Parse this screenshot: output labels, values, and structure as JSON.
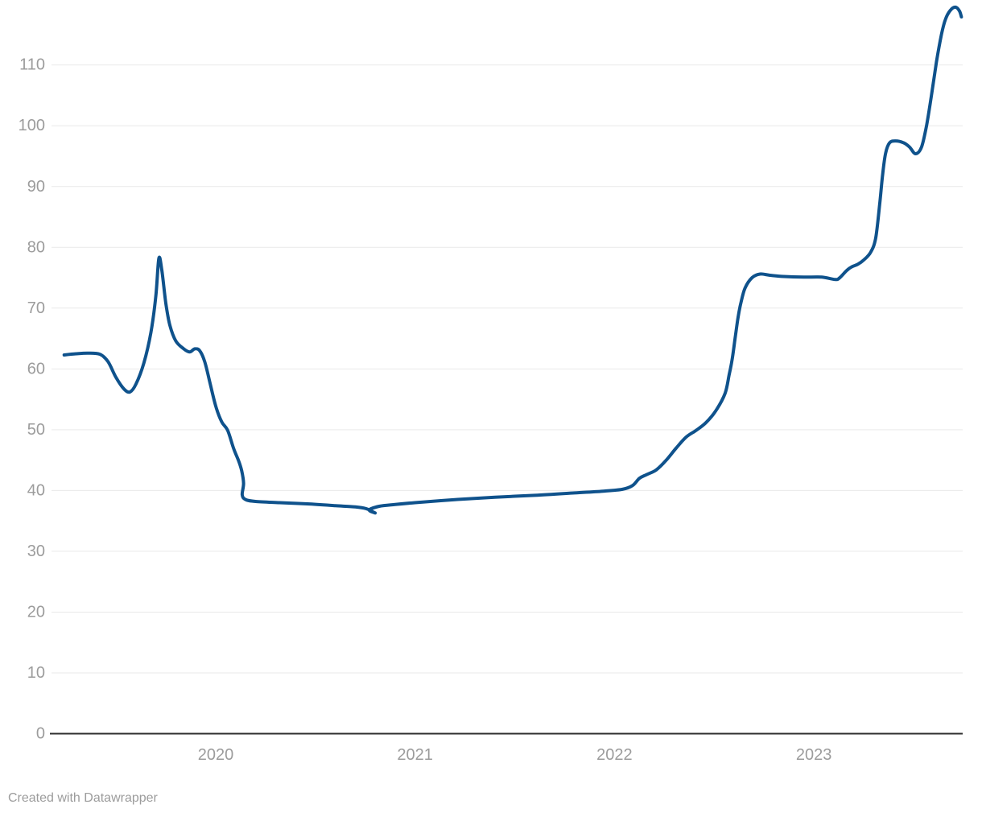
{
  "footer": {
    "attribution": "Created with Datawrapper"
  },
  "style": {
    "background": "#ffffff",
    "line_color": "#0f528c",
    "grid_color": "#e9e9e9",
    "axis_color": "#2e2e2e",
    "tick_label_color": "#9c9c9c"
  },
  "chart_data": {
    "type": "line",
    "title": "",
    "xlabel": "",
    "ylabel": "",
    "legend": "none",
    "grid": "horizontal",
    "x_axis": {
      "unit": "year",
      "range": [
        2019.24,
        2023.74
      ],
      "ticks": [
        {
          "value": 2020,
          "label": "2020"
        },
        {
          "value": 2021,
          "label": "2021"
        },
        {
          "value": 2022,
          "label": "2022"
        },
        {
          "value": 2023,
          "label": "2023"
        }
      ]
    },
    "y_axis": {
      "range": [
        0,
        110
      ],
      "ticks": [
        {
          "value": 0,
          "label": "0"
        },
        {
          "value": 10,
          "label": "10"
        },
        {
          "value": 20,
          "label": "20"
        },
        {
          "value": 30,
          "label": "30"
        },
        {
          "value": 40,
          "label": "40"
        },
        {
          "value": 50,
          "label": "50"
        },
        {
          "value": 60,
          "label": "60"
        },
        {
          "value": 70,
          "label": "70"
        },
        {
          "value": 80,
          "label": "80"
        },
        {
          "value": 90,
          "label": "90"
        },
        {
          "value": 100,
          "label": "100"
        },
        {
          "value": 110,
          "label": "110"
        }
      ]
    },
    "series": [
      {
        "name": "value",
        "color": "#0f528c",
        "points": [
          [
            2019.24,
            62.3
          ],
          [
            2019.3,
            62.5
          ],
          [
            2019.36,
            62.6
          ],
          [
            2019.42,
            62.4
          ],
          [
            2019.46,
            61.2
          ],
          [
            2019.5,
            58.6
          ],
          [
            2019.54,
            56.7
          ],
          [
            2019.57,
            56.2
          ],
          [
            2019.6,
            57.5
          ],
          [
            2019.64,
            61.0
          ],
          [
            2019.675,
            66.0
          ],
          [
            2019.7,
            72.0
          ],
          [
            2019.715,
            78.2
          ],
          [
            2019.73,
            76.2
          ],
          [
            2019.75,
            70.8
          ],
          [
            2019.77,
            67.2
          ],
          [
            2019.8,
            64.6
          ],
          [
            2019.84,
            63.3
          ],
          [
            2019.87,
            62.8
          ],
          [
            2019.895,
            63.3
          ],
          [
            2019.92,
            63.0
          ],
          [
            2019.945,
            61.2
          ],
          [
            2019.97,
            57.9
          ],
          [
            2020.0,
            53.9
          ],
          [
            2020.03,
            51.3
          ],
          [
            2020.06,
            49.9
          ],
          [
            2020.09,
            46.9
          ],
          [
            2020.115,
            44.9
          ],
          [
            2020.13,
            43.3
          ],
          [
            2020.14,
            41.2
          ],
          [
            2020.133,
            39.3
          ],
          [
            2020.15,
            38.5
          ],
          [
            2020.2,
            38.2
          ],
          [
            2020.32,
            38.0
          ],
          [
            2020.46,
            37.8
          ],
          [
            2020.6,
            37.5
          ],
          [
            2020.7,
            37.3
          ],
          [
            2020.755,
            37.0
          ],
          [
            2020.8,
            36.3
          ],
          [
            2020.77,
            36.8
          ],
          [
            2020.82,
            37.4
          ],
          [
            2020.9,
            37.7
          ],
          [
            2021.0,
            38.0
          ],
          [
            2021.2,
            38.5
          ],
          [
            2021.4,
            38.9
          ],
          [
            2021.6,
            39.2
          ],
          [
            2021.8,
            39.6
          ],
          [
            2021.95,
            39.9
          ],
          [
            2022.04,
            40.2
          ],
          [
            2022.09,
            40.8
          ],
          [
            2022.125,
            42.0
          ],
          [
            2022.16,
            42.6
          ],
          [
            2022.21,
            43.4
          ],
          [
            2022.26,
            45.0
          ],
          [
            2022.31,
            47.0
          ],
          [
            2022.36,
            48.8
          ],
          [
            2022.41,
            49.9
          ],
          [
            2022.46,
            51.2
          ],
          [
            2022.51,
            53.2
          ],
          [
            2022.555,
            56.0
          ],
          [
            2022.575,
            59.0
          ],
          [
            2022.59,
            61.5
          ],
          [
            2022.605,
            65.0
          ],
          [
            2022.62,
            68.5
          ],
          [
            2022.635,
            71.0
          ],
          [
            2022.655,
            73.3
          ],
          [
            2022.69,
            75.0
          ],
          [
            2022.73,
            75.6
          ],
          [
            2022.78,
            75.4
          ],
          [
            2022.85,
            75.2
          ],
          [
            2022.95,
            75.1
          ],
          [
            2023.04,
            75.1
          ],
          [
            2023.108,
            74.7
          ],
          [
            2023.13,
            75.0
          ],
          [
            2023.165,
            76.2
          ],
          [
            2023.19,
            76.8
          ],
          [
            2023.22,
            77.2
          ],
          [
            2023.25,
            77.9
          ],
          [
            2023.285,
            79.2
          ],
          [
            2023.31,
            81.5
          ],
          [
            2023.33,
            87.0
          ],
          [
            2023.345,
            92.0
          ],
          [
            2023.36,
            95.5
          ],
          [
            2023.38,
            97.2
          ],
          [
            2023.41,
            97.5
          ],
          [
            2023.45,
            97.2
          ],
          [
            2023.48,
            96.5
          ],
          [
            2023.51,
            95.4
          ],
          [
            2023.54,
            96.5
          ],
          [
            2023.565,
            100.0
          ],
          [
            2023.59,
            105.0
          ],
          [
            2023.615,
            110.5
          ],
          [
            2023.64,
            115.0
          ],
          [
            2023.66,
            117.5
          ],
          [
            2023.685,
            119.0
          ],
          [
            2023.71,
            119.5
          ],
          [
            2023.73,
            118.9
          ],
          [
            2023.74,
            117.9
          ]
        ]
      }
    ]
  }
}
